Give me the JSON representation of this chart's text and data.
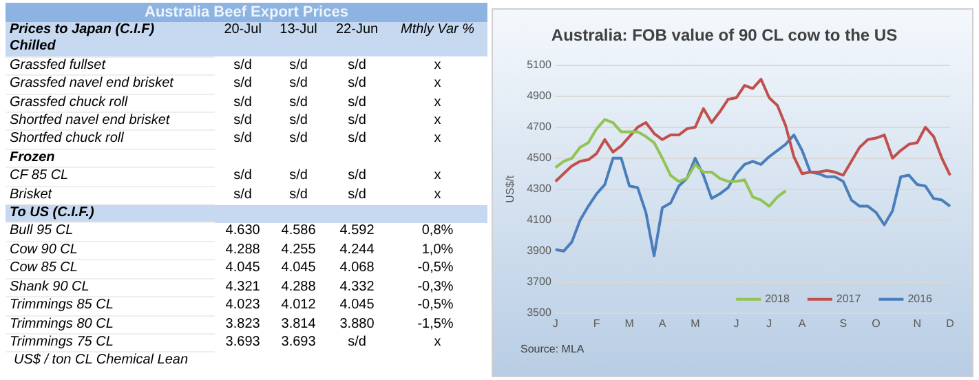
{
  "chart_data": [
    {
      "type": "other",
      "title": "Australia Beef Export Prices",
      "ylabel": "Prices to Japan (C.I.F)",
      "categories": [
        "Chilled",
        "Grassfed fullset",
        "Grassfed navel end brisket",
        "Grassfed chuck roll",
        "Shortfed navel end brisket",
        "Shortfed chuck roll",
        "Frozen",
        "CF 85 CL",
        "Brisket",
        "To US (C.I.F.)",
        "Bull 95 CL",
        "Cow 90 CL",
        "Cow 85 CL",
        "Shank 90 CL",
        "Trimmings 85 CL",
        "Trimmings 80 CL",
        "Trimmings 75 CL"
      ],
      "series": [
        {
          "name": "20-Jul",
          "values": [
            null,
            null,
            null,
            null,
            null,
            null,
            null,
            null,
            null,
            null,
            4630,
            4288,
            4045,
            4321,
            4023,
            3823,
            3693
          ],
          "value_labels": [
            null,
            "s/d",
            "s/d",
            "s/d",
            "s/d",
            "s/d",
            null,
            "s/d",
            "s/d",
            null,
            "4.630",
            "4.288",
            "4.045",
            "4.321",
            "4.023",
            "3.823",
            "3.693"
          ]
        },
        {
          "name": "13-Jul",
          "values": [
            null,
            null,
            null,
            null,
            null,
            null,
            null,
            null,
            null,
            null,
            4586,
            4255,
            4045,
            4288,
            4012,
            3814,
            3693
          ],
          "value_labels": [
            null,
            "s/d",
            "s/d",
            "s/d",
            "s/d",
            "s/d",
            null,
            "s/d",
            "s/d",
            null,
            "4.586",
            "4.255",
            "4.045",
            "4.288",
            "4.012",
            "3.814",
            "3.693"
          ]
        },
        {
          "name": "22-Jun",
          "values": [
            null,
            null,
            null,
            null,
            null,
            null,
            null,
            null,
            null,
            null,
            4592,
            4244,
            4068,
            4332,
            4045,
            3880,
            null
          ],
          "value_labels": [
            null,
            "s/d",
            "s/d",
            "s/d",
            "s/d",
            "s/d",
            null,
            "s/d",
            "s/d",
            null,
            "4.592",
            "4.244",
            "4.068",
            "4.332",
            "4.045",
            "3.880",
            "s/d"
          ]
        },
        {
          "name": "Mthly Var %",
          "values": [
            null,
            null,
            null,
            null,
            null,
            null,
            null,
            null,
            null,
            null,
            0.8,
            1.0,
            -0.5,
            -0.3,
            -0.5,
            -1.5,
            null
          ],
          "value_labels": [
            null,
            "x",
            "x",
            "x",
            "x",
            "x",
            null,
            "x",
            "x",
            null,
            "0,8%",
            "1,0%",
            "-0,5%",
            "-0,3%",
            "-0,5%",
            "-1,5%",
            "x"
          ]
        }
      ],
      "annotations": [
        "US$ / ton CL Chemical Lean"
      ]
    },
    {
      "type": "line",
      "title": "Australia: FOB value of 90 CL cow to the US",
      "ylabel": "US$/t",
      "categories": [
        "J",
        null,
        null,
        null,
        null,
        "F",
        null,
        null,
        null,
        "M",
        null,
        null,
        null,
        "A",
        null,
        null,
        null,
        "M",
        null,
        null,
        null,
        null,
        "J",
        null,
        null,
        null,
        "J",
        null,
        null,
        null,
        "A",
        null,
        null,
        null,
        null,
        "S",
        null,
        null,
        null,
        "O",
        null,
        null,
        null,
        null,
        "N",
        null,
        null,
        null,
        "D"
      ],
      "ylim": [
        3500,
        5100
      ],
      "yticks": [
        3500,
        3700,
        3900,
        4100,
        4300,
        4500,
        4700,
        4900,
        5100
      ],
      "grid": "y",
      "legend": "bottom right",
      "marker": "none",
      "line_style": "solid",
      "annotations": [
        "Source: MLA"
      ],
      "series": [
        {
          "name": "2018",
          "color": "#92c353",
          "values": [
            4440,
            4480,
            4500,
            4570,
            4600,
            4690,
            4750,
            4730,
            4670,
            4670,
            4670,
            4640,
            4600,
            4500,
            4390,
            4350,
            4370,
            4460,
            4410,
            4410,
            4370,
            4350,
            4350,
            4360,
            4250,
            4230,
            4190,
            4250,
            4290,
            null,
            null,
            null,
            null,
            null,
            null,
            null,
            null,
            null,
            null,
            null,
            null,
            null,
            null,
            null,
            null,
            null,
            null,
            null,
            null
          ]
        },
        {
          "name": "2017",
          "color": "#c0504d",
          "values": [
            4350,
            4400,
            4450,
            4480,
            4490,
            4530,
            4620,
            4540,
            4580,
            4640,
            4700,
            4730,
            4660,
            4620,
            4650,
            4650,
            4690,
            4700,
            4820,
            4730,
            4800,
            4880,
            4890,
            4970,
            4950,
            5010,
            4890,
            4840,
            4710,
            4510,
            4400,
            4410,
            4410,
            4420,
            4410,
            4390,
            4480,
            4570,
            4620,
            4630,
            4650,
            4500,
            4550,
            4590,
            4600,
            4700,
            4640,
            4500,
            4390
          ]
        },
        {
          "name": "2016",
          "color": "#4a7ebb",
          "values": [
            3910,
            3900,
            3960,
            4100,
            4190,
            4270,
            4330,
            4500,
            4500,
            4320,
            4310,
            4150,
            3870,
            4180,
            4210,
            4320,
            4370,
            4500,
            4390,
            4240,
            4270,
            4310,
            4400,
            4460,
            4480,
            4460,
            4510,
            4550,
            4590,
            4650,
            4550,
            4410,
            4400,
            4380,
            4380,
            4350,
            4230,
            4190,
            4190,
            4150,
            4070,
            4160,
            4380,
            4390,
            4330,
            4320,
            4240,
            4230,
            4190
          ]
        }
      ]
    }
  ]
}
